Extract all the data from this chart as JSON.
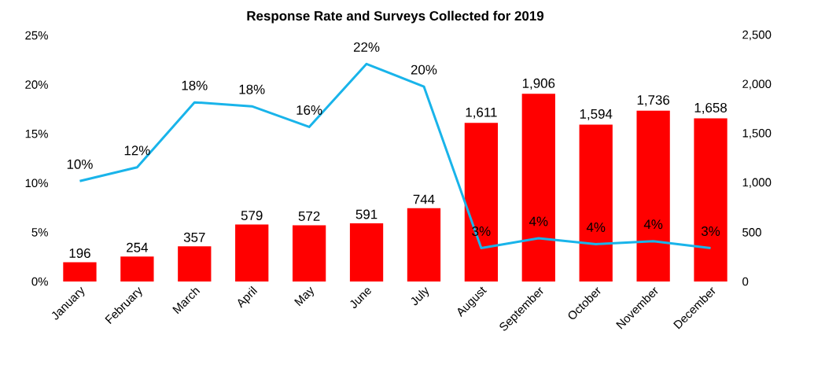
{
  "chart_data": {
    "type": "bar",
    "title": "Response Rate and Surveys Collected for 2019",
    "categories": [
      "January",
      "February",
      "March",
      "April",
      "May",
      "June",
      "July",
      "August",
      "September",
      "October",
      "November",
      "December"
    ],
    "series": [
      {
        "axis": "y2",
        "color": "#ff0000",
        "values": [
          196,
          254,
          357,
          579,
          572,
          591,
          744,
          1611,
          1906,
          1594,
          1736,
          1658
        ],
        "value_labels": [
          "196",
          "254",
          "357",
          "579",
          "572",
          "591",
          "744",
          "1,611",
          "1,906",
          "1,594",
          "1,736",
          "1,658"
        ]
      },
      {
        "type": "line",
        "axis": "y",
        "color": "#19b4ea",
        "values": [
          10.2,
          11.6,
          18.2,
          17.8,
          15.7,
          22.1,
          19.8,
          3.4,
          4.4,
          3.8,
          4.1,
          3.4
        ],
        "value_labels": [
          "10%",
          "12%",
          "18%",
          "18%",
          "16%",
          "22%",
          "20%",
          "3%",
          "4%",
          "4%",
          "4%",
          "3%"
        ]
      }
    ],
    "ylim": [
      0,
      25
    ],
    "yticks": [
      {
        "value": 0,
        "label": "0%"
      },
      {
        "value": 5,
        "label": "5%"
      },
      {
        "value": 10,
        "label": "10%"
      },
      {
        "value": 15,
        "label": "15%"
      },
      {
        "value": 20,
        "label": "20%"
      },
      {
        "value": 25,
        "label": "25%"
      }
    ],
    "y2lim": [
      0,
      2500
    ],
    "y2ticks": [
      0,
      500,
      {
        "value": 1000,
        "label": "1,000"
      },
      {
        "value": 1500,
        "label": "1,500"
      },
      {
        "value": 2000,
        "label": "2,000"
      },
      {
        "value": 2500,
        "label": "2,500"
      }
    ]
  }
}
